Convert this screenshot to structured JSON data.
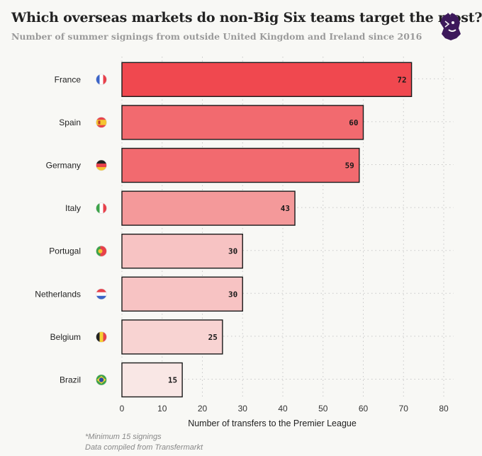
{
  "header": {
    "title": "Which overseas markets do non-Big Six teams target the most?",
    "subtitle": "Number of summer signings from outside United Kingdom and Ireland since 2016"
  },
  "logo": {
    "icon": "premier-league-lion-icon",
    "color": "#3d195b"
  },
  "footnotes": {
    "line1": "*Minimum 15 signings",
    "line2": "Data compiled from Transfermarkt"
  },
  "chart_data": {
    "type": "bar",
    "orientation": "horizontal",
    "categories": [
      "France",
      "Spain",
      "Germany",
      "Italy",
      "Portugal",
      "Netherlands",
      "Belgium",
      "Brazil"
    ],
    "values": [
      72,
      60,
      59,
      43,
      30,
      30,
      25,
      15
    ],
    "flags": [
      "france-flag-icon",
      "spain-flag-icon",
      "germany-flag-icon",
      "italy-flag-icon",
      "portugal-flag-icon",
      "netherlands-flag-icon",
      "belgium-flag-icon",
      "brazil-flag-icon"
    ],
    "bar_colors": [
      "#f0484f",
      "#f26a6f",
      "#f26a6f",
      "#f4999a",
      "#f7c3c3",
      "#f7c3c3",
      "#f8d3d2",
      "#f9e7e5"
    ],
    "xlabel": "Number of transfers to the Premier League",
    "ylabel": "",
    "xlim": [
      0,
      80
    ],
    "xticks": [
      0,
      10,
      20,
      30,
      40,
      50,
      60,
      70,
      80
    ],
    "grid": "vertical dotted"
  }
}
